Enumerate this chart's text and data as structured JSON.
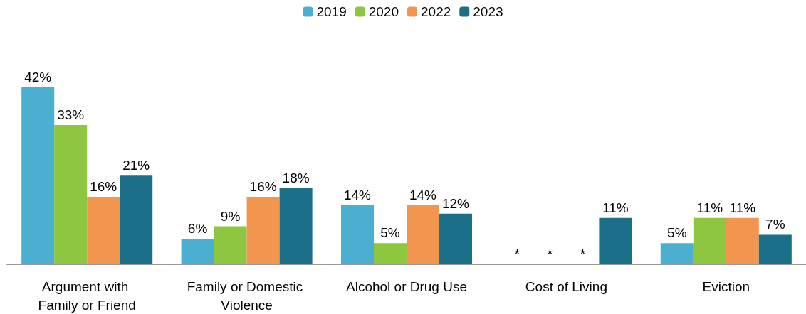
{
  "chart_data": {
    "type": "bar",
    "categories": [
      "Argument with Family or Friend",
      "Family or Domestic Violence",
      "Alcohol or Drug Use",
      "Cost of Living",
      "Eviction"
    ],
    "series": [
      {
        "name": "2019",
        "color": "#4bafd2",
        "values": [
          42,
          6,
          14,
          null,
          5
        ],
        "value_labels": [
          "42%",
          "6%",
          "14%",
          "*",
          "5%"
        ]
      },
      {
        "name": "2020",
        "color": "#8dc63f",
        "values": [
          33,
          9,
          5,
          null,
          11
        ],
        "value_labels": [
          "33%",
          "9%",
          "5%",
          "*",
          "11%"
        ]
      },
      {
        "name": "2022",
        "color": "#f2954e",
        "values": [
          16,
          16,
          14,
          null,
          11
        ],
        "value_labels": [
          "16%",
          "16%",
          "14%",
          "*",
          "11%"
        ]
      },
      {
        "name": "2023",
        "color": "#1b6f89",
        "values": [
          21,
          18,
          12,
          11,
          7
        ],
        "value_labels": [
          "21%",
          "18%",
          "12%",
          "11%",
          "7%"
        ]
      }
    ],
    "legend": "top"
  }
}
